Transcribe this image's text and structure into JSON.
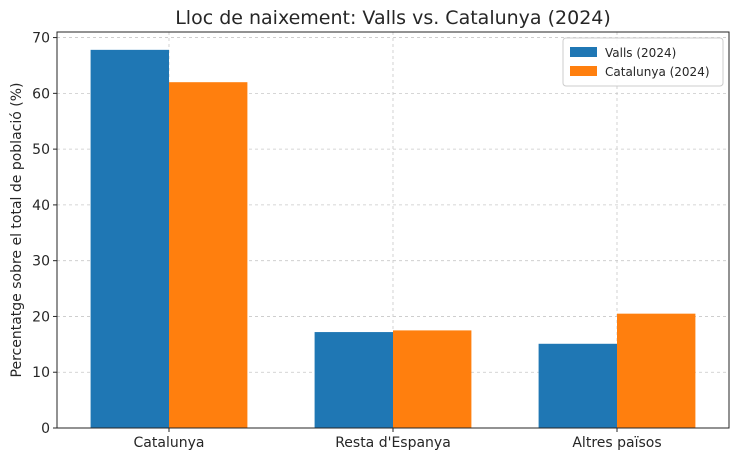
{
  "chart_data": {
    "type": "bar",
    "title": "Lloc de naixement: Valls vs. Catalunya (2024)",
    "xlabel": "",
    "ylabel": "Percentatge sobre el total de població (%)",
    "categories": [
      "Catalunya",
      "Resta d'Espanya",
      "Altres països"
    ],
    "series": [
      {
        "name": "Valls (2024)",
        "color": "#1f77b4",
        "values": [
          67.8,
          17.2,
          15.1
        ]
      },
      {
        "name": "Catalunya (2024)",
        "color": "#ff7f0e",
        "values": [
          62.0,
          17.5,
          20.5
        ]
      }
    ],
    "ylim": [
      0,
      71
    ],
    "yticks": [
      0,
      10,
      20,
      30,
      40,
      50,
      60,
      70
    ],
    "grid": true,
    "legend_position": "top-right"
  }
}
